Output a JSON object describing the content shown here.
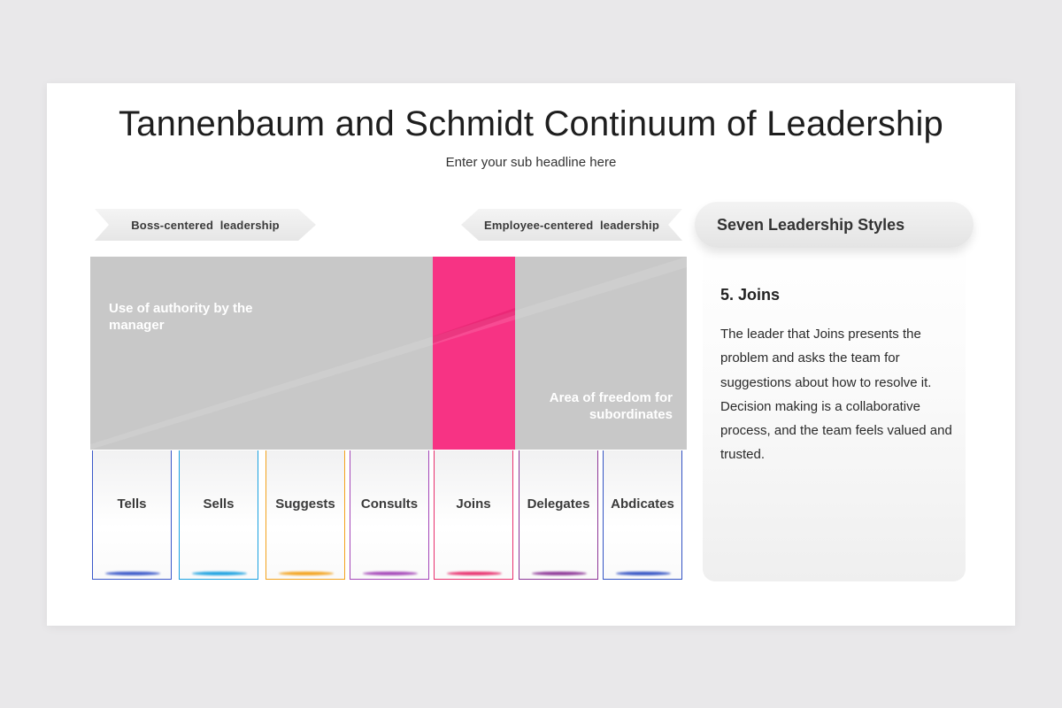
{
  "title": "Tannenbaum and Schmidt Continuum of Leadership",
  "subtitle": "Enter your sub headline here",
  "banners": {
    "boss": "Boss-centered  leadership",
    "employee": "Employee-centered  leadership"
  },
  "continuum": {
    "authority_label": "Use of authority by the manager",
    "freedom_label": "Area of freedom for subordinates",
    "highlight_color": "#f73384",
    "base_color": "#c8c8c8"
  },
  "styles": [
    {
      "label": "Tells",
      "color": "#3a58c9"
    },
    {
      "label": "Sells",
      "color": "#1aa1e0"
    },
    {
      "label": "Suggests",
      "color": "#f3a21c"
    },
    {
      "label": "Consults",
      "color": "#a446b8"
    },
    {
      "label": "Joins",
      "color": "#e8306e"
    },
    {
      "label": "Delegates",
      "color": "#8d3697"
    },
    {
      "label": "Abdicates",
      "color": "#3353c4"
    }
  ],
  "panel": {
    "header": "Seven Leadership Styles",
    "selected_title": "5. Joins",
    "selected_description": "The leader that Joins presents the problem and asks the team for suggestions about how to resolve it. Decision making is a collaborative process, and the team feels valued and trusted."
  }
}
